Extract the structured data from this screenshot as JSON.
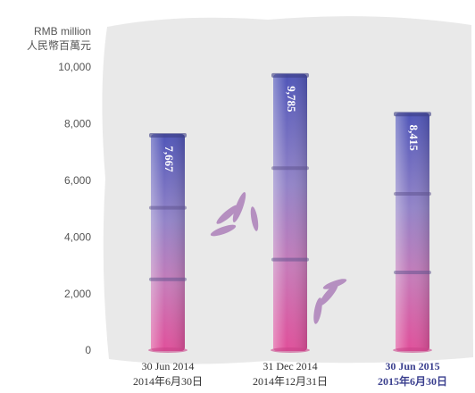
{
  "chart_data": {
    "type": "bar",
    "y_axis_title": [
      "RMB million",
      "人民幣百萬元"
    ],
    "categories": [
      "30 Jun 2014",
      "31 Dec 2014",
      "30 Jun 2015"
    ],
    "categories_secondary": [
      "2014年6月30日",
      "2014年12月31日",
      "2015年6月30日"
    ],
    "highlight": 2,
    "values": [
      7667,
      9785,
      8415
    ],
    "value_labels": [
      "7,667",
      "9,785",
      "8,415"
    ],
    "ylim": [
      0,
      10000
    ],
    "yticks": [
      0,
      {
        "value": 2000,
        "label": "2,000"
      },
      {
        "value": 4000,
        "label": "4,000"
      },
      {
        "value": 6000,
        "label": "6,000"
      },
      {
        "value": 8000,
        "label": "8,000"
      },
      {
        "value": 10000,
        "label": "10,000"
      }
    ]
  }
}
